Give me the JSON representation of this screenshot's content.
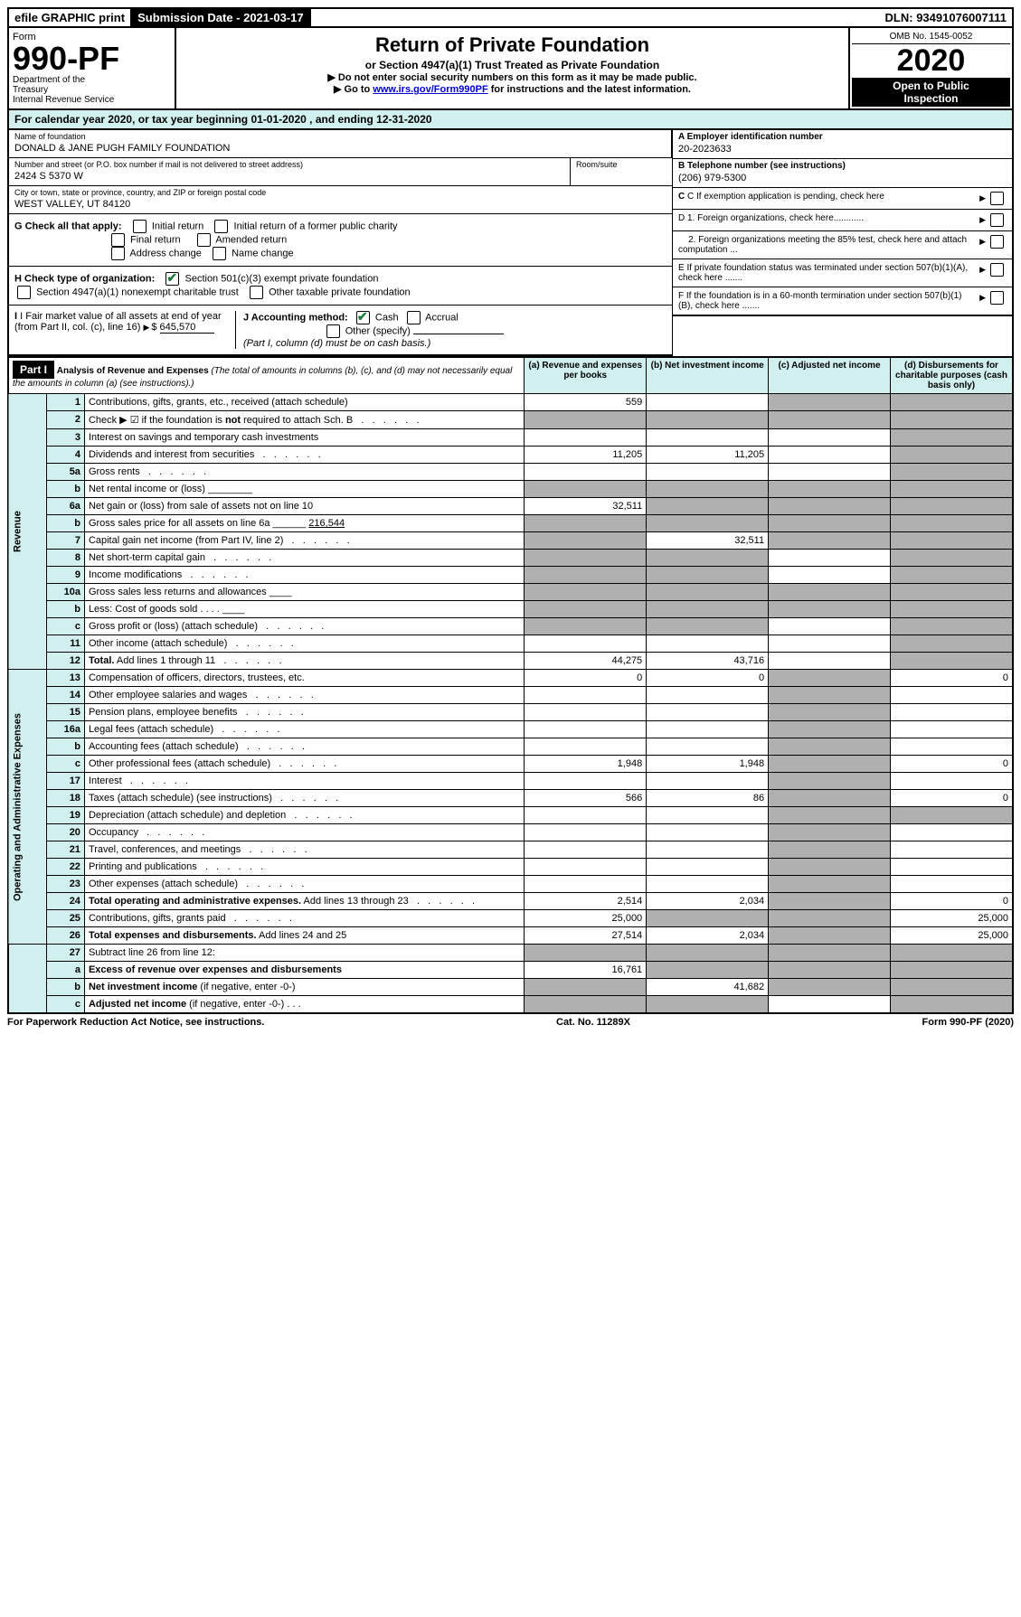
{
  "topbar": {
    "efile": "efile GRAPHIC print",
    "sub_label": "Submission Date - 2021-03-17",
    "dln": "DLN: 93491076007111"
  },
  "header": {
    "form_word": "Form",
    "form_no": "990-PF",
    "dept": "Department of the Treasury\nInternal Revenue Service",
    "title": "Return of Private Foundation",
    "subtitle": "or Section 4947(a)(1) Trust Treated as Private Foundation",
    "instr1": "▶ Do not enter social security numbers on this form as it may be made public.",
    "instr2_pre": "▶ Go to ",
    "instr2_link": "www.irs.gov/Form990PF",
    "instr2_post": " for instructions and the latest information.",
    "omb": "OMB No. 1545-0052",
    "year": "2020",
    "open": "Open to Public Inspection"
  },
  "cal": "For calendar year 2020, or tax year beginning 01-01-2020            , and ending 12-31-2020",
  "info": {
    "name_label": "Name of foundation",
    "name": "DONALD & JANE PUGH FAMILY FOUNDATION",
    "addr_label": "Number and street (or P.O. box number if mail is not delivered to street address)",
    "addr": "2424 S 5370 W",
    "room_label": "Room/suite",
    "city_label": "City or town, state or province, country, and ZIP or foreign postal code",
    "city": "WEST VALLEY, UT  84120",
    "a_label": "A Employer identification number",
    "a_val": "20-2023633",
    "b_label": "B Telephone number (see instructions)",
    "b_val": "(206) 979-5300",
    "c_label": "C If exemption application is pending, check here",
    "d1": "D 1. Foreign organizations, check here............",
    "d2": "2. Foreign organizations meeting the 85% test, check here and attach computation ...",
    "e": "E  If private foundation status was terminated under section 507(b)(1)(A), check here .......",
    "f": "F  If the foundation is in a 60-month termination under section 507(b)(1)(B), check here .......",
    "g_label": "G Check all that apply:",
    "g_opts": [
      "Initial return",
      "Initial return of a former public charity",
      "Final return",
      "Amended return",
      "Address change",
      "Name change"
    ],
    "h_label": "H Check type of organization:",
    "h1": "Section 501(c)(3) exempt private foundation",
    "h2": "Section 4947(a)(1) nonexempt charitable trust",
    "h3": "Other taxable private foundation",
    "i_label": "I Fair market value of all assets at end of year (from Part II, col. (c), line 16)",
    "i_val": "645,570",
    "j_label": "J Accounting method:",
    "j_cash": "Cash",
    "j_accrual": "Accrual",
    "j_other": "Other (specify)",
    "j_note": "(Part I, column (d) must be on cash basis.)"
  },
  "part1": {
    "label": "Part I",
    "title": "Analysis of Revenue and Expenses",
    "title_note": "(The total of amounts in columns (b), (c), and (d) may not necessarily equal the amounts in column (a) (see instructions).)",
    "col_a": "(a)   Revenue and expenses per books",
    "col_b": "(b)  Net investment income",
    "col_c": "(c)  Adjusted net income",
    "col_d": "(d)  Disbursements for charitable purposes (cash basis only)"
  },
  "sections": {
    "revenue": "Revenue",
    "expenses": "Operating and Administrative Expenses"
  },
  "rows": [
    {
      "n": "1",
      "d": "Contributions, gifts, grants, etc., received (attach schedule)",
      "a": "559",
      "b": "",
      "c": "g",
      "dd": "g"
    },
    {
      "n": "2",
      "d": "Check ▶ ☑ if the foundation is <b>not</b> required to attach Sch. B",
      "a": "g",
      "b": "g",
      "c": "g",
      "dd": "g",
      "dots": 1
    },
    {
      "n": "3",
      "d": "Interest on savings and temporary cash investments",
      "a": "",
      "b": "",
      "c": "",
      "dd": "g"
    },
    {
      "n": "4",
      "d": "Dividends and interest from securities",
      "a": "11,205",
      "b": "11,205",
      "c": "",
      "dd": "g",
      "dots": 1
    },
    {
      "n": "5a",
      "d": "Gross rents",
      "a": "",
      "b": "",
      "c": "",
      "dd": "g",
      "dots": 1
    },
    {
      "n": "b",
      "d": "Net rental income or (loss) ________",
      "a": "g",
      "b": "g",
      "c": "g",
      "dd": "g"
    },
    {
      "n": "6a",
      "d": "Net gain or (loss) from sale of assets not on line 10",
      "a": "32,511",
      "b": "g",
      "c": "g",
      "dd": "g"
    },
    {
      "n": "b",
      "d": "Gross sales price for all assets on line 6a ______ <u>216,544</u>",
      "a": "g",
      "b": "g",
      "c": "g",
      "dd": "g"
    },
    {
      "n": "7",
      "d": "Capital gain net income (from Part IV, line 2)",
      "a": "g",
      "b": "32,511",
      "c": "g",
      "dd": "g",
      "dots": 1
    },
    {
      "n": "8",
      "d": "Net short-term capital gain",
      "a": "g",
      "b": "g",
      "c": "",
      "dd": "g",
      "dots": 1
    },
    {
      "n": "9",
      "d": "Income modifications",
      "a": "g",
      "b": "g",
      "c": "",
      "dd": "g",
      "dots": 1
    },
    {
      "n": "10a",
      "d": "Gross sales less returns and allowances ____",
      "a": "g",
      "b": "g",
      "c": "g",
      "dd": "g"
    },
    {
      "n": "b",
      "d": "Less: Cost of goods sold   .  .  .  .  ____",
      "a": "g",
      "b": "g",
      "c": "g",
      "dd": "g"
    },
    {
      "n": "c",
      "d": "Gross profit or (loss) (attach schedule)",
      "a": "g",
      "b": "g",
      "c": "",
      "dd": "g",
      "dots": 1
    },
    {
      "n": "11",
      "d": "Other income (attach schedule)",
      "a": "",
      "b": "",
      "c": "",
      "dd": "g",
      "dots": 1
    },
    {
      "n": "12",
      "d": "<b>Total.</b> Add lines 1 through 11",
      "a": "44,275",
      "b": "43,716",
      "c": "",
      "dd": "g",
      "dots": 1
    }
  ],
  "exp_rows": [
    {
      "n": "13",
      "d": "Compensation of officers, directors, trustees, etc.",
      "a": "0",
      "b": "0",
      "c": "g",
      "dd": "0"
    },
    {
      "n": "14",
      "d": "Other employee salaries and wages",
      "a": "",
      "b": "",
      "c": "g",
      "dd": "",
      "dots": 1
    },
    {
      "n": "15",
      "d": "Pension plans, employee benefits",
      "a": "",
      "b": "",
      "c": "g",
      "dd": "",
      "dots": 1
    },
    {
      "n": "16a",
      "d": "Legal fees (attach schedule)",
      "a": "",
      "b": "",
      "c": "g",
      "dd": "",
      "dots": 1
    },
    {
      "n": "b",
      "d": "Accounting fees (attach schedule)",
      "a": "",
      "b": "",
      "c": "g",
      "dd": "",
      "dots": 1
    },
    {
      "n": "c",
      "d": "Other professional fees (attach schedule)",
      "a": "1,948",
      "b": "1,948",
      "c": "g",
      "dd": "0",
      "dots": 1
    },
    {
      "n": "17",
      "d": "Interest",
      "a": "",
      "b": "",
      "c": "g",
      "dd": "",
      "dots": 1
    },
    {
      "n": "18",
      "d": "Taxes (attach schedule) (see instructions)",
      "a": "566",
      "b": "86",
      "c": "g",
      "dd": "0",
      "dots": 1
    },
    {
      "n": "19",
      "d": "Depreciation (attach schedule) and depletion",
      "a": "",
      "b": "",
      "c": "g",
      "dd": "g",
      "dots": 1
    },
    {
      "n": "20",
      "d": "Occupancy",
      "a": "",
      "b": "",
      "c": "g",
      "dd": "",
      "dots": 1
    },
    {
      "n": "21",
      "d": "Travel, conferences, and meetings",
      "a": "",
      "b": "",
      "c": "g",
      "dd": "",
      "dots": 1
    },
    {
      "n": "22",
      "d": "Printing and publications",
      "a": "",
      "b": "",
      "c": "g",
      "dd": "",
      "dots": 1
    },
    {
      "n": "23",
      "d": "Other expenses (attach schedule)",
      "a": "",
      "b": "",
      "c": "g",
      "dd": "",
      "dots": 1
    },
    {
      "n": "24",
      "d": "<b>Total operating and administrative expenses.</b> Add lines 13 through 23",
      "a": "2,514",
      "b": "2,034",
      "c": "g",
      "dd": "0",
      "dots": 1
    },
    {
      "n": "25",
      "d": "Contributions, gifts, grants paid",
      "a": "25,000",
      "b": "g",
      "c": "g",
      "dd": "25,000",
      "dots": 1
    },
    {
      "n": "26",
      "d": "<b>Total expenses and disbursements.</b> Add lines 24 and 25",
      "a": "27,514",
      "b": "2,034",
      "c": "g",
      "dd": "25,000"
    }
  ],
  "sub_rows": [
    {
      "n": "27",
      "d": "Subtract line 26 from line 12:",
      "a": "g",
      "b": "g",
      "c": "g",
      "dd": "g"
    },
    {
      "n": "a",
      "d": "<b>Excess of revenue over expenses and disbursements</b>",
      "a": "16,761",
      "b": "g",
      "c": "g",
      "dd": "g"
    },
    {
      "n": "b",
      "d": "<b>Net investment income</b> (if negative, enter -0-)",
      "a": "g",
      "b": "41,682",
      "c": "g",
      "dd": "g"
    },
    {
      "n": "c",
      "d": "<b>Adjusted net income</b> (if negative, enter -0-)   .  .  .",
      "a": "g",
      "b": "g",
      "c": "",
      "dd": "g"
    }
  ],
  "footer": {
    "left": "For Paperwork Reduction Act Notice, see instructions.",
    "mid": "Cat. No. 11289X",
    "right": "Form 990-PF (2020)"
  }
}
